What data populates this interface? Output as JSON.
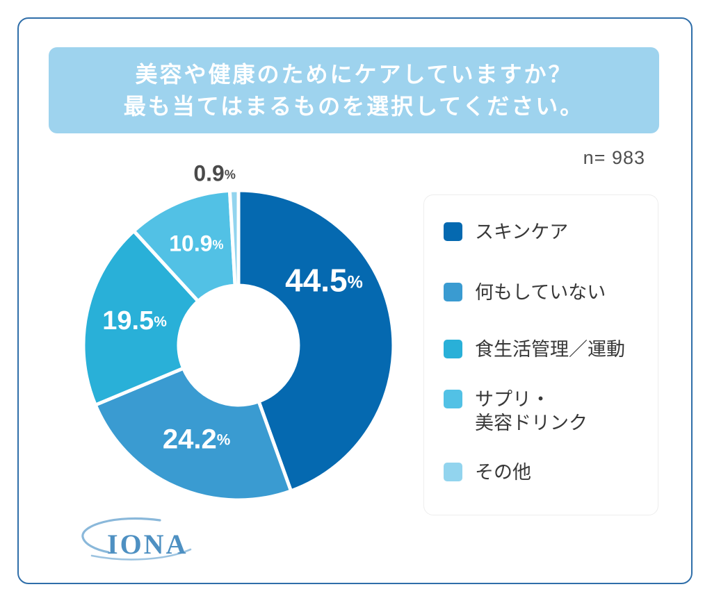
{
  "frame": {
    "border_color": "#2f6ea9"
  },
  "title": {
    "line1": "美容や健康のためにケアしていますか？",
    "line2": "最も当てはまるものを選択してください。",
    "bg": "#9ed3ee",
    "text_color": "#ffffff"
  },
  "sample_size_label": "n= 983",
  "chart_data": {
    "type": "pie",
    "subtype": "donut",
    "title": "美容や健康のためにケアしていますか？最も当てはまるものを選択してください。",
    "sample_size": 983,
    "categories": [
      "スキンケア",
      "何もしていない",
      "食生活管理／運動",
      "サプリ・美容ドリンク",
      "その他"
    ],
    "values": [
      44.5,
      24.2,
      19.5,
      10.9,
      0.9
    ],
    "unit": "%",
    "colors": [
      "#0569b0",
      "#3a9bd1",
      "#29b0d8",
      "#52c1e5",
      "#92d4ee"
    ],
    "gap_color": "#ffffff",
    "slice_label_color": "#ffffff",
    "outside_label_color": "#4a4a4a",
    "start_position": "top",
    "direction": "clockwise",
    "legend_position": "right"
  },
  "legend": {
    "items": [
      {
        "label": "スキンケア"
      },
      {
        "label": "何もしていない"
      },
      {
        "label": "食生活管理／運動"
      },
      {
        "label": "サプリ・\n美容ドリンク"
      },
      {
        "label": "その他"
      }
    ]
  },
  "logo": {
    "text": "IONA"
  }
}
